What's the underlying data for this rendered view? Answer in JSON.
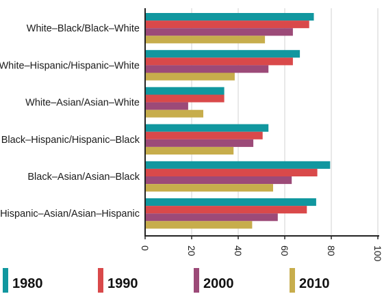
{
  "chart_data": {
    "type": "bar",
    "orientation": "horizontal",
    "categories": [
      "White–Black/Black–White",
      "White–Hispanic/Hispanic–White",
      "White–Asian/Asian–White",
      "Black–Hispanic/Hispanic–Black",
      "Black–Asian/Asian–Black",
      "Hispanic–Asian/Asian–Hispanic"
    ],
    "series": [
      {
        "name": "1980",
        "color": "#11979f",
        "values": [
          72.5,
          66.5,
          34,
          53,
          79.5,
          73.5
        ]
      },
      {
        "name": "1990",
        "color": "#d9494a",
        "values": [
          70.5,
          63.5,
          34,
          50.5,
          74,
          69.5
        ]
      },
      {
        "name": "2000",
        "color": "#9c4a78",
        "values": [
          63.5,
          53,
          18.5,
          46.5,
          63,
          57
        ]
      },
      {
        "name": "2010",
        "color": "#c7ad4c",
        "values": [
          51.5,
          38.5,
          25,
          38,
          55,
          46
        ]
      }
    ],
    "xticks": [
      0,
      20,
      40,
      60,
      80,
      100
    ],
    "xlim": [
      0,
      100
    ],
    "grid": true,
    "legend_position": "bottom"
  }
}
